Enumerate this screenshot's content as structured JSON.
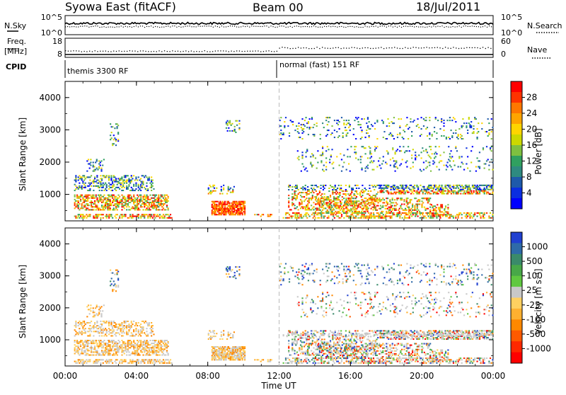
{
  "header": {
    "station": "Syowa East (fitACF)",
    "beam": "Beam 00",
    "date": "18/Jul/2011"
  },
  "chart_data": [
    {
      "type": "line",
      "panel": "noise",
      "left_label": "N.Sky",
      "right_label": "N.Search",
      "left_ticks": [
        "10^5",
        "10^0"
      ],
      "right_ticks": [
        "10^5",
        "10^0"
      ],
      "x_range_hours": [
        0,
        24
      ]
    },
    {
      "type": "line",
      "panel": "frequency",
      "left_label_1": "Freq.",
      "left_label_2": "[MHz]",
      "right_label": "Nave",
      "left_ticks": [
        "18",
        "8"
      ],
      "right_ticks": [
        "60",
        "0"
      ]
    },
    {
      "type": "table",
      "panel": "cpid",
      "label": "CPID",
      "segments": [
        {
          "name": "themis 3300 RF",
          "start_hour": 0,
          "end_hour": 12
        },
        {
          "name": "normal (fast) 151 RF",
          "start_hour": 12,
          "end_hour": 24
        }
      ]
    },
    {
      "type": "heatmap",
      "panel": "power",
      "ylabel": "Slant Range [km]",
      "yticks": [
        "4000",
        "3000",
        "2000",
        "1000"
      ],
      "ylim": [
        180,
        4500
      ],
      "colorbar_label": "Power [dB]",
      "colorbar_ticks": [
        "28",
        "24",
        "20",
        "16",
        "12",
        "8",
        "4"
      ],
      "colorbar_colors": [
        "#ff0000",
        "#ff3300",
        "#ff7700",
        "#ffa500",
        "#ffd500",
        "#ccd800",
        "#7ec040",
        "#30a060",
        "#2e8a80",
        "#1e5aaa",
        "#0a2ee0",
        "#0000ff"
      ],
      "colorbar_range": [
        0,
        30
      ]
    },
    {
      "type": "heatmap",
      "panel": "velocity",
      "ylabel": "Slant Range [km]",
      "yticks": [
        "4000",
        "3000",
        "2000",
        "1000"
      ],
      "ylim": [
        180,
        4500
      ],
      "colorbar_label": "Velocity [m s⁻¹]",
      "colorbar_ticks": [
        "1000",
        "500",
        "100",
        "25",
        "-25",
        "-100",
        "-500",
        "-1000"
      ],
      "colorbar_colors": [
        "#2040d0",
        "#2e6aa8",
        "#3a8a6a",
        "#48a848",
        "#60c840",
        "#c8c8c8",
        "#ffd060",
        "#ffb030",
        "#ff8800",
        "#ff5a00",
        "#ff2800",
        "#ff0000"
      ]
    }
  ],
  "xaxis": {
    "ticks": [
      "00:00",
      "04:00",
      "08:00",
      "12:00",
      "16:00",
      "20:00",
      "00:00"
    ],
    "label": "Time UT"
  }
}
